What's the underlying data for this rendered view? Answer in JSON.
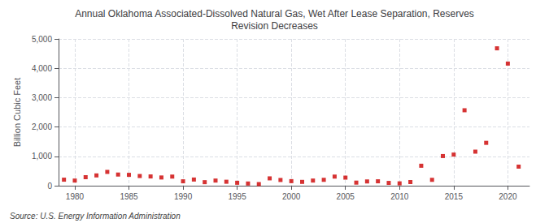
{
  "chart_data": {
    "type": "scatter",
    "title": "Annual Oklahoma Associated-Dissolved Natural Gas, Wet After Lease Separation, Reserves\nRevision Decreases",
    "ylabel": "Billion Cubic Feet",
    "source": "Source: U.S. Energy Information Administration",
    "color": "#cc0000",
    "marker": "square",
    "grid": true,
    "x": [
      1979,
      1980,
      1981,
      1982,
      1983,
      1984,
      1985,
      1986,
      1987,
      1988,
      1989,
      1990,
      1991,
      1992,
      1993,
      1994,
      1995,
      1996,
      1997,
      1998,
      1999,
      2000,
      2001,
      2002,
      2003,
      2004,
      2005,
      2006,
      2007,
      2008,
      2009,
      2010,
      2011,
      2012,
      2013,
      2014,
      2015,
      2016,
      2017,
      2018,
      2019,
      2020,
      2021
    ],
    "values": [
      205,
      175,
      290,
      350,
      470,
      380,
      370,
      330,
      315,
      280,
      310,
      150,
      210,
      120,
      175,
      135,
      100,
      75,
      55,
      250,
      195,
      155,
      130,
      175,
      200,
      310,
      275,
      105,
      145,
      150,
      95,
      80,
      125,
      680,
      200,
      1010,
      1060,
      2570,
      1160,
      1460,
      4680,
      4160,
      650
    ],
    "xlim": [
      1978.5,
      2022
    ],
    "xticks": [
      1980,
      1985,
      1990,
      1995,
      2000,
      2005,
      2010,
      2015,
      2020
    ],
    "ylim": [
      0,
      5000
    ],
    "yticks": [
      0,
      {
        "value": 1000,
        "label": "1,000"
      },
      {
        "value": 2000,
        "label": "2,000"
      },
      {
        "value": 3000,
        "label": "3,000"
      },
      {
        "value": 4000,
        "label": "4,000"
      },
      {
        "value": 5000,
        "label": "5,000"
      }
    ]
  }
}
